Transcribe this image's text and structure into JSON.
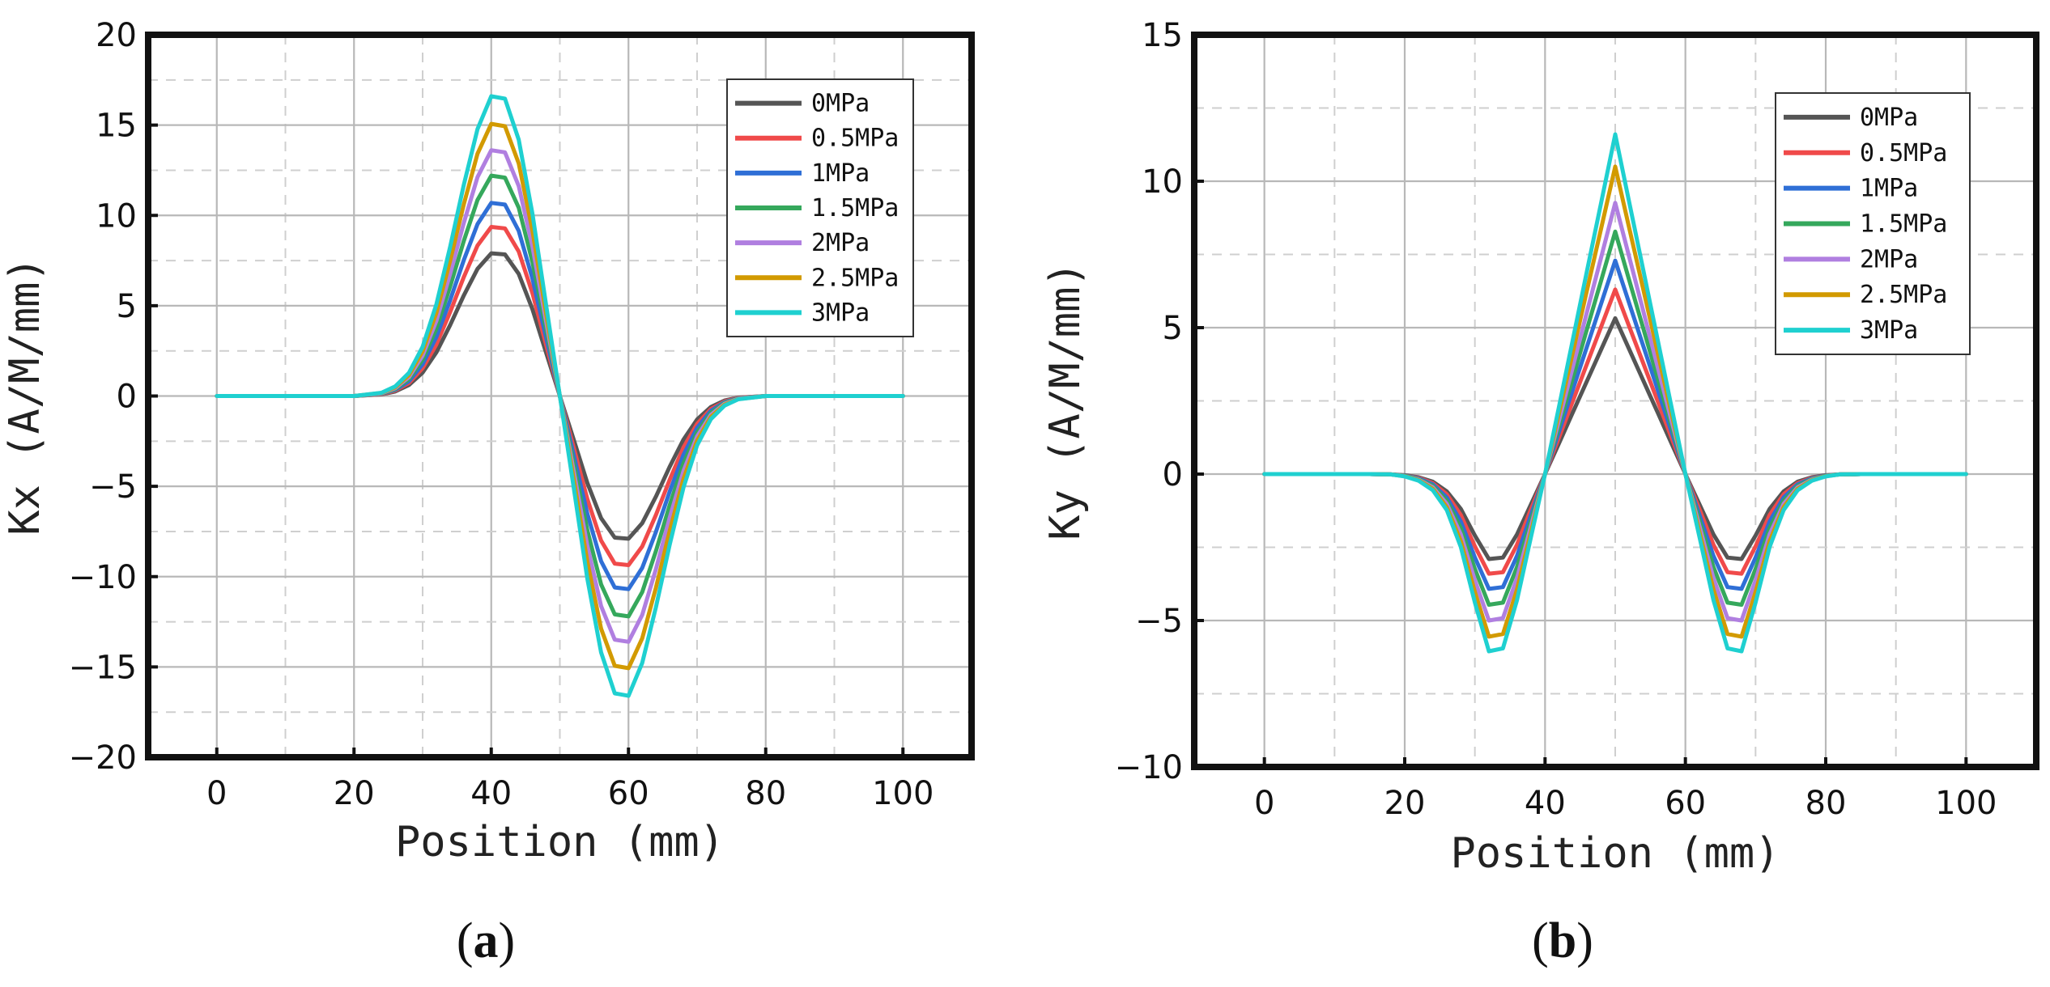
{
  "chart_data": [
    {
      "type": "line",
      "panel_label": "a",
      "title": "",
      "xlabel": "Position (mm)",
      "ylabel": "Kx (A/M/mm)",
      "xlim": [
        -10,
        110
      ],
      "ylim": [
        -20,
        20
      ],
      "xticks": [
        0,
        20,
        40,
        60,
        80,
        100
      ],
      "yticks": [
        -20,
        -15,
        -10,
        -5,
        0,
        5,
        10,
        15,
        20
      ],
      "xtick_labels": [
        "0",
        "20",
        "40",
        "60",
        "80",
        "100"
      ],
      "ytick_labels": [
        "−20",
        "−15",
        "−10",
        "−5",
        "0",
        "5",
        "10",
        "15",
        "20"
      ],
      "grid": true,
      "legend_position": "top-right",
      "x": [
        0,
        5,
        10,
        15,
        20,
        24,
        26,
        28,
        30,
        32,
        34,
        36,
        38,
        40,
        42,
        44,
        46,
        48,
        50,
        52,
        54,
        56,
        58,
        60,
        62,
        64,
        66,
        68,
        70,
        72,
        74,
        76,
        80,
        85,
        90,
        95,
        100
      ],
      "series": [
        {
          "name": "0MPa",
          "color": "#555555",
          "values": [
            0,
            0,
            0,
            0,
            0,
            0.09,
            0.25,
            0.61,
            1.3,
            2.42,
            3.92,
            5.57,
            7.04,
            7.9,
            7.84,
            6.76,
            4.81,
            2.4,
            0,
            -2.4,
            -4.81,
            -6.76,
            -7.84,
            -7.9,
            -7.04,
            -5.57,
            -3.92,
            -2.42,
            -1.3,
            -0.61,
            -0.25,
            -0.09,
            0,
            0,
            0,
            0,
            0
          ]
        },
        {
          "name": "0.5MPa",
          "color": "#f04a4a",
          "values": [
            0,
            0,
            0,
            0,
            0,
            0.1,
            0.3,
            0.72,
            1.54,
            2.86,
            4.64,
            6.59,
            8.33,
            9.36,
            9.28,
            8.0,
            5.7,
            2.84,
            0,
            -2.84,
            -5.7,
            -8.0,
            -9.28,
            -9.36,
            -8.33,
            -6.59,
            -4.64,
            -2.86,
            -1.54,
            -0.72,
            -0.3,
            -0.1,
            0,
            0,
            0,
            0,
            0
          ]
        },
        {
          "name": "1MPa",
          "color": "#2f6fd6",
          "values": [
            0,
            0,
            0,
            0,
            0,
            0.12,
            0.34,
            0.82,
            1.76,
            3.27,
            5.3,
            7.53,
            9.52,
            10.69,
            10.6,
            9.14,
            6.51,
            3.24,
            0,
            -3.24,
            -6.51,
            -9.14,
            -10.6,
            -10.69,
            -9.52,
            -7.53,
            -5.3,
            -3.27,
            -1.76,
            -0.82,
            -0.34,
            -0.12,
            0,
            0,
            0,
            0,
            0
          ]
        },
        {
          "name": "1.5MPa",
          "color": "#35a85c",
          "values": [
            0,
            0,
            0,
            0,
            0,
            0.13,
            0.38,
            0.94,
            2.01,
            3.73,
            6.05,
            8.59,
            10.86,
            12.2,
            12.09,
            10.43,
            7.42,
            3.7,
            0,
            -3.7,
            -7.42,
            -10.43,
            -12.09,
            -12.2,
            -10.86,
            -8.59,
            -6.05,
            -3.73,
            -2.01,
            -0.94,
            -0.38,
            -0.13,
            0,
            0,
            0,
            0,
            0
          ]
        },
        {
          "name": "2MPa",
          "color": "#b07fe0",
          "values": [
            0,
            0,
            0,
            0,
            0,
            0.15,
            0.43,
            1.05,
            2.24,
            4.16,
            6.75,
            9.59,
            12.12,
            13.61,
            13.49,
            11.63,
            8.28,
            4.13,
            0,
            -4.13,
            -8.28,
            -11.63,
            -13.49,
            -13.61,
            -12.12,
            -9.59,
            -6.75,
            -4.16,
            -2.24,
            -1.05,
            -0.43,
            -0.15,
            0,
            0,
            0,
            0,
            0
          ]
        },
        {
          "name": "2.5MPa",
          "color": "#d29a00",
          "values": [
            0,
            0,
            0,
            0,
            0,
            0.17,
            0.48,
            1.16,
            2.48,
            4.61,
            7.48,
            10.62,
            13.42,
            15.07,
            14.94,
            12.88,
            9.17,
            4.57,
            0,
            -4.57,
            -9.17,
            -12.88,
            -14.94,
            -15.07,
            -13.42,
            -10.62,
            -7.48,
            -4.61,
            -2.48,
            -1.16,
            -0.48,
            -0.17,
            0,
            0,
            0,
            0,
            0
          ]
        },
        {
          "name": "3MPa",
          "color": "#1fd0d0",
          "values": [
            0,
            0,
            0,
            0,
            0,
            0.18,
            0.53,
            1.28,
            2.73,
            5.08,
            8.24,
            11.7,
            14.78,
            16.6,
            16.46,
            14.19,
            10.1,
            5.04,
            0,
            -5.04,
            -10.1,
            -14.19,
            -16.46,
            -16.6,
            -14.78,
            -11.7,
            -8.24,
            -5.08,
            -2.73,
            -1.28,
            -0.53,
            -0.18,
            0,
            0,
            0,
            0,
            0
          ]
        }
      ]
    },
    {
      "type": "line",
      "panel_label": "b",
      "title": "",
      "xlabel": "Position (mm)",
      "ylabel": "Ky (A/M/mm)",
      "xlim": [
        -10,
        110
      ],
      "ylim": [
        -10,
        15
      ],
      "xticks": [
        0,
        20,
        40,
        60,
        80,
        100
      ],
      "yticks": [
        -10,
        -5,
        0,
        5,
        10,
        15
      ],
      "xtick_labels": [
        "0",
        "20",
        "40",
        "60",
        "80",
        "100"
      ],
      "ytick_labels": [
        "−10",
        "−5",
        "0",
        "5",
        "10",
        "15"
      ],
      "grid": true,
      "legend_position": "top-right",
      "x": [
        0,
        10,
        15,
        18,
        20,
        22,
        24,
        26,
        28,
        30,
        32,
        34,
        36,
        38,
        40,
        42,
        44,
        46,
        48,
        50,
        52,
        54,
        56,
        58,
        60,
        62,
        64,
        66,
        68,
        70,
        72,
        74,
        76,
        78,
        80,
        82,
        85,
        90,
        100
      ],
      "series": [
        {
          "name": "0MPa",
          "color": "#555555",
          "values": [
            0,
            0,
            0,
            -0.01,
            -0.04,
            -0.11,
            -0.26,
            -0.59,
            -1.19,
            -2.1,
            -2.9,
            -2.85,
            -2.06,
            -1.03,
            0,
            1.06,
            2.13,
            3.19,
            4.26,
            5.32,
            4.26,
            3.19,
            2.13,
            1.06,
            0,
            -1.03,
            -2.06,
            -2.85,
            -2.9,
            -2.1,
            -1.19,
            -0.59,
            -0.26,
            -0.11,
            -0.04,
            -0.01,
            0,
            0,
            0
          ]
        },
        {
          "name": "0.5MPa",
          "color": "#f04a4a",
          "values": [
            0,
            0,
            0,
            -0.01,
            -0.05,
            -0.13,
            -0.31,
            -0.69,
            -1.4,
            -2.47,
            -3.4,
            -3.35,
            -2.41,
            -1.2,
            0,
            1.26,
            2.52,
            3.78,
            5.04,
            6.3,
            5.04,
            3.78,
            2.52,
            1.26,
            0,
            -1.2,
            -2.41,
            -3.35,
            -3.4,
            -2.47,
            -1.4,
            -0.69,
            -0.31,
            -0.13,
            -0.05,
            -0.01,
            0,
            0,
            0
          ]
        },
        {
          "name": "1MPa",
          "color": "#2f6fd6",
          "values": [
            0,
            0,
            0,
            -0.01,
            -0.05,
            -0.15,
            -0.35,
            -0.8,
            -1.62,
            -2.85,
            -3.92,
            -3.86,
            -2.79,
            -1.39,
            0,
            1.46,
            2.92,
            4.37,
            5.83,
            7.29,
            5.83,
            4.37,
            2.92,
            1.46,
            0,
            -1.39,
            -2.79,
            -3.86,
            -3.92,
            -2.85,
            -1.62,
            -0.8,
            -0.35,
            -0.15,
            -0.05,
            -0.01,
            0,
            0,
            0
          ]
        },
        {
          "name": "1.5MPa",
          "color": "#35a85c",
          "values": [
            0,
            0,
            0,
            -0.01,
            -0.06,
            -0.17,
            -0.4,
            -0.91,
            -1.84,
            -3.24,
            -4.46,
            -4.39,
            -3.17,
            -1.58,
            0,
            1.66,
            3.31,
            4.97,
            6.62,
            8.28,
            6.62,
            4.97,
            3.31,
            1.66,
            0,
            -1.58,
            -3.17,
            -4.39,
            -4.46,
            -3.24,
            -1.84,
            -0.91,
            -0.4,
            -0.17,
            -0.06,
            -0.01,
            0,
            0,
            0
          ]
        },
        {
          "name": "2MPa",
          "color": "#b07fe0",
          "values": [
            0,
            0,
            0,
            -0.01,
            -0.07,
            -0.19,
            -0.45,
            -1.02,
            -2.06,
            -3.63,
            -5.0,
            -4.92,
            -3.55,
            -1.77,
            0,
            1.85,
            3.7,
            5.56,
            7.41,
            9.26,
            7.41,
            5.56,
            3.7,
            1.85,
            0,
            -1.77,
            -3.55,
            -4.92,
            -5.0,
            -3.63,
            -2.06,
            -1.02,
            -0.45,
            -0.19,
            -0.07,
            -0.01,
            0,
            0,
            0
          ]
        },
        {
          "name": "2.5MPa",
          "color": "#d29a00",
          "values": [
            0,
            0,
            0,
            -0.01,
            -0.07,
            -0.21,
            -0.5,
            -1.13,
            -2.29,
            -4.03,
            -5.55,
            -5.46,
            -3.94,
            -1.97,
            0,
            2.1,
            4.2,
            6.3,
            8.4,
            10.5,
            8.4,
            6.3,
            4.2,
            2.1,
            0,
            -1.97,
            -3.94,
            -5.46,
            -5.55,
            -4.03,
            -2.29,
            -1.13,
            -0.5,
            -0.21,
            -0.07,
            -0.01,
            0,
            0,
            0
          ]
        },
        {
          "name": "3MPa",
          "color": "#1fd0d0",
          "values": [
            0,
            0,
            0,
            -0.01,
            -0.08,
            -0.23,
            -0.55,
            -1.23,
            -2.49,
            -4.39,
            -6.05,
            -5.95,
            -4.3,
            -2.14,
            0,
            2.32,
            4.64,
            6.96,
            9.28,
            11.6,
            9.28,
            6.96,
            4.64,
            2.32,
            0,
            -2.14,
            -4.3,
            -5.95,
            -6.05,
            -4.39,
            -2.49,
            -1.23,
            -0.55,
            -0.23,
            -0.08,
            -0.01,
            0,
            0,
            0
          ]
        }
      ]
    }
  ]
}
